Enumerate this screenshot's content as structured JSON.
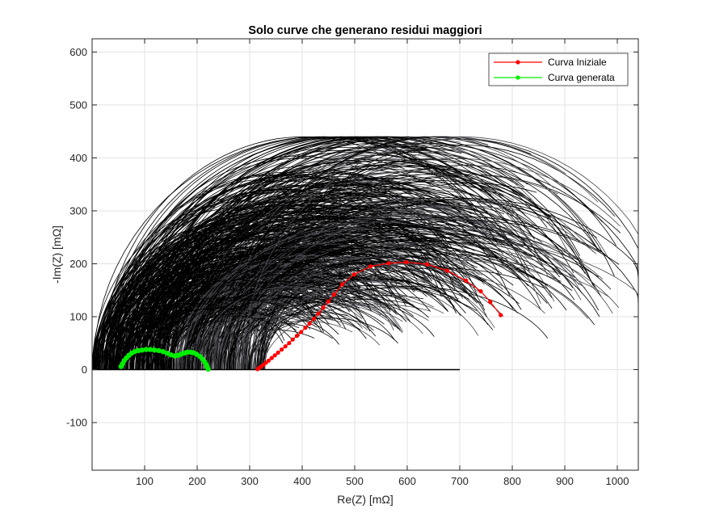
{
  "chart_data": {
    "type": "line",
    "title": "Solo curve che generano residui maggiori",
    "xlabel": "Re(Z) [mΩ]",
    "ylabel": "-Im(Z) [mΩ]",
    "xlim": [
      0,
      1040
    ],
    "ylim": [
      -190,
      625
    ],
    "xticks": [
      100,
      200,
      300,
      400,
      500,
      600,
      700,
      800,
      900,
      1000
    ],
    "yticks": [
      -100,
      0,
      100,
      200,
      300,
      400,
      500,
      600
    ],
    "grid": true,
    "legend": {
      "position": "top-right",
      "entries": [
        "Curva Iniziale",
        "Curva generata"
      ]
    },
    "colors": {
      "initial": "#ff0000",
      "generated": "#00ee00",
      "background_curves": "#000000",
      "background_curves_alt": "#4a4a50",
      "grid": "#e3e3e3",
      "axes": "#262626"
    },
    "background_curves": {
      "description_count": 700,
      "x_start_range": [
        0,
        330
      ],
      "x_end_range": [
        300,
        1040
      ],
      "peak_height_range": [
        40,
        440
      ]
    },
    "series": [
      {
        "name": "Curva Iniziale",
        "x": [
          315,
          318,
          322,
          326,
          331,
          336,
          342,
          348,
          354,
          361,
          368,
          375,
          382,
          390,
          398,
          406,
          414,
          422,
          431,
          440,
          450,
          461,
          476,
          499,
          530,
          565,
          598,
          638,
          676,
          712,
          740,
          758,
          778
        ],
        "y": [
          1,
          3,
          6,
          9,
          13,
          17,
          22,
          27,
          32,
          38,
          44,
          50,
          57,
          64,
          71,
          79,
          87,
          96,
          106,
          117,
          129,
          142,
          161,
          180,
          195,
          201,
          203,
          199,
          187,
          168,
          148,
          128,
          103
        ]
      },
      {
        "name": "Curva generata",
        "x": [
          55,
          58,
          61,
          65,
          70,
          75,
          81,
          88,
          95,
          103,
          111,
          119,
          127,
          135,
          143,
          150,
          157,
          163,
          169,
          175,
          181,
          187,
          193,
          199,
          205,
          210,
          214,
          217,
          219,
          221
        ],
        "y": [
          6,
          11,
          17,
          22,
          27,
          31,
          34,
          36,
          37,
          38,
          38,
          37,
          36,
          34,
          31,
          28,
          26,
          27,
          29,
          31,
          33,
          33,
          32,
          29,
          25,
          20,
          15,
          10,
          5,
          1
        ]
      }
    ]
  }
}
